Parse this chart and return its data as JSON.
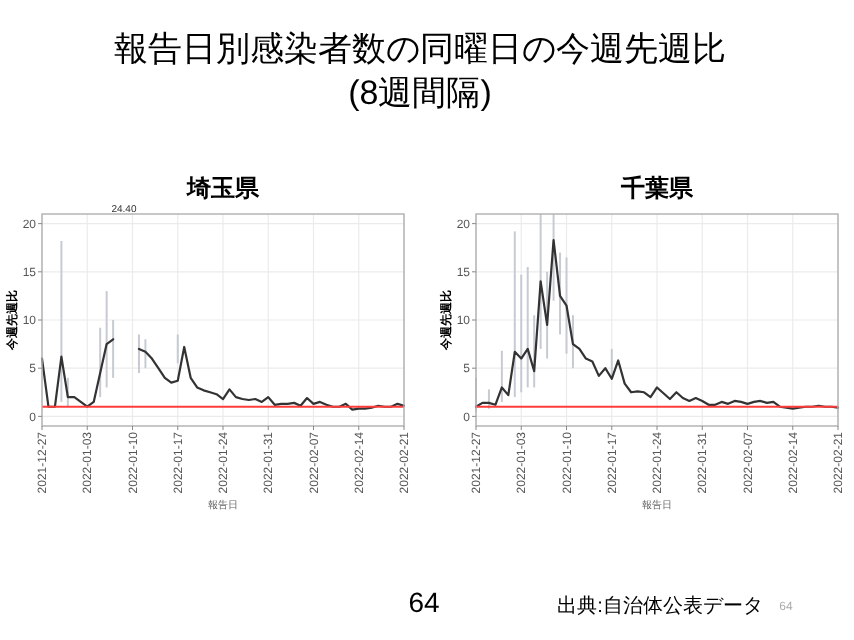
{
  "chart_data": [
    {
      "type": "line",
      "title": "埼玉県",
      "xlabel": "報告日",
      "ylabel": "今週先週比",
      "annotations": [
        "報告日別感染者数の同曜日の今週先週比",
        "(8週間隔)",
        "24.40"
      ],
      "x": [
        "2021-12-27",
        "2021-12-28",
        "2021-12-29",
        "2021-12-30",
        "2021-12-31",
        "2022-01-01",
        "2022-01-02",
        "2022-01-03",
        "2022-01-04",
        "2022-01-05",
        "2022-01-06",
        "2022-01-07",
        "2022-01-08",
        "2022-01-09",
        "2022-01-10",
        "2022-01-11",
        "2022-01-12",
        "2022-01-13",
        "2022-01-14",
        "2022-01-15",
        "2022-01-16",
        "2022-01-17",
        "2022-01-18",
        "2022-01-19",
        "2022-01-20",
        "2022-01-21",
        "2022-01-22",
        "2022-01-23",
        "2022-01-24",
        "2022-01-25",
        "2022-01-26",
        "2022-01-27",
        "2022-01-28",
        "2022-01-29",
        "2022-01-30",
        "2022-01-31",
        "2022-02-01",
        "2022-02-02",
        "2022-02-03",
        "2022-02-04",
        "2022-02-05",
        "2022-02-06",
        "2022-02-07",
        "2022-02-08",
        "2022-02-09",
        "2022-02-10",
        "2022-02-11",
        "2022-02-12",
        "2022-02-13",
        "2022-02-14",
        "2022-02-15",
        "2022-02-16",
        "2022-02-17",
        "2022-02-18",
        "2022-02-19",
        "2022-02-20",
        "2022-02-21"
      ],
      "series": [
        {
          "color": "#333333",
          "values": [
            6,
            1,
            1,
            6.2,
            2,
            2,
            1.5,
            1,
            1.5,
            4.5,
            7.5,
            8,
            null,
            null,
            null,
            7,
            6.7,
            6,
            5,
            4,
            3.5,
            3.7,
            7.2,
            4,
            3,
            2.7,
            2.5,
            2.3,
            1.8,
            2.8,
            2,
            1.8,
            1.7,
            1.8,
            1.5,
            2,
            1.2,
            1.3,
            1.3,
            1.4,
            1.1,
            1.9,
            1.3,
            1.5,
            1.2,
            1,
            1,
            1.3,
            0.7,
            0.8,
            0.8,
            0.9,
            1.1,
            1,
            1,
            1.3,
            1.1
          ],
          "errors": [
            null,
            null,
            null,
            [
              1.5,
              18.2
            ],
            [
              1,
              4
            ],
            null,
            null,
            null,
            null,
            [
              2,
              9.2
            ],
            [
              3,
              13
            ],
            [
              4,
              10
            ],
            null,
            null,
            null,
            [
              4.5,
              8.5
            ],
            [
              5,
              8
            ],
            null,
            null,
            null,
            null,
            [
              5.5,
              8.5
            ],
            null,
            null,
            null,
            null,
            null,
            null,
            null,
            null,
            null,
            null,
            null,
            null,
            null,
            null,
            null,
            null,
            null,
            null,
            null,
            null,
            null,
            null,
            null,
            null,
            null,
            null,
            null,
            null,
            null,
            null,
            null,
            null,
            null,
            null,
            null
          ]
        }
      ],
      "xlim": [
        "2021-12-27",
        "2022-02-21"
      ],
      "ylim": [
        -1,
        21
      ],
      "yticks": [
        0,
        5,
        10,
        15,
        20
      ],
      "xticks": [
        "2021-12-27",
        "2022-01-03",
        "2022-01-10",
        "2022-01-17",
        "2022-01-24",
        "2022-01-31",
        "2022-02-07",
        "2022-02-14",
        "2022-02-21"
      ],
      "grid": true,
      "marker": "none",
      "line_style": "solid",
      "ref_lines": [
        {
          "axis": "y",
          "value": 1,
          "color": "#ff3b3b"
        }
      ]
    },
    {
      "type": "line",
      "title": "千葉県",
      "xlabel": "報告日",
      "ylabel": "今週先週比",
      "annotations": [
        "64",
        "出典:自治体公表データ",
        "64"
      ],
      "x": [
        "2021-12-27",
        "2021-12-28",
        "2021-12-29",
        "2021-12-30",
        "2021-12-31",
        "2022-01-01",
        "2022-01-02",
        "2022-01-03",
        "2022-01-04",
        "2022-01-05",
        "2022-01-06",
        "2022-01-07",
        "2022-01-08",
        "2022-01-09",
        "2022-01-10",
        "2022-01-11",
        "2022-01-12",
        "2022-01-13",
        "2022-01-14",
        "2022-01-15",
        "2022-01-16",
        "2022-01-17",
        "2022-01-18",
        "2022-01-19",
        "2022-01-20",
        "2022-01-21",
        "2022-01-22",
        "2022-01-23",
        "2022-01-24",
        "2022-01-25",
        "2022-01-26",
        "2022-01-27",
        "2022-01-28",
        "2022-01-29",
        "2022-01-30",
        "2022-01-31",
        "2022-02-01",
        "2022-02-02",
        "2022-02-03",
        "2022-02-04",
        "2022-02-05",
        "2022-02-06",
        "2022-02-07",
        "2022-02-08",
        "2022-02-09",
        "2022-02-10",
        "2022-02-11",
        "2022-02-12",
        "2022-02-13",
        "2022-02-14",
        "2022-02-15",
        "2022-02-16",
        "2022-02-17",
        "2022-02-18",
        "2022-02-19",
        "2022-02-20",
        "2022-02-21"
      ],
      "series": [
        {
          "color": "#333333",
          "values": [
            1,
            1.4,
            1.4,
            1.2,
            3,
            2.2,
            6.7,
            6,
            7,
            4.7,
            14,
            9.5,
            18.3,
            12.5,
            11.5,
            7.5,
            7,
            6,
            5.7,
            4.2,
            5,
            3.9,
            5.8,
            3.4,
            2.5,
            2.6,
            2.5,
            2,
            3,
            2.4,
            1.8,
            2.5,
            1.9,
            1.6,
            1.9,
            1.6,
            1.2,
            1.2,
            1.5,
            1.3,
            1.6,
            1.5,
            1.3,
            1.5,
            1.6,
            1.4,
            1.5,
            1,
            0.9,
            0.8,
            0.9,
            1,
            1,
            1.1,
            1,
            1,
            0.9
          ],
          "errors": [
            [
              0.5,
              4
            ],
            null,
            [
              0.8,
              2.8
            ],
            null,
            [
              1.5,
              6.8
            ],
            null,
            [
              2,
              19.2
            ],
            [
              2.5,
              14.7
            ],
            [
              3,
              15.5
            ],
            [
              3,
              10.5
            ],
            [
              7,
              21
            ],
            [
              6,
              15
            ],
            [
              12,
              21
            ],
            [
              8.5,
              17
            ],
            [
              6.5,
              16.5
            ],
            [
              5,
              10.5
            ],
            null,
            null,
            null,
            null,
            null,
            [
              4,
              7
            ],
            null,
            null,
            null,
            null,
            null,
            null,
            null,
            null,
            null,
            null,
            null,
            null,
            null,
            null,
            null,
            null,
            null,
            null,
            null,
            null,
            null,
            null,
            null,
            null,
            null,
            null,
            null,
            null,
            null,
            null,
            null,
            null,
            null,
            null,
            null
          ]
        }
      ],
      "xlim": [
        "2021-12-27",
        "2022-02-21"
      ],
      "ylim": [
        -1,
        21
      ],
      "yticks": [
        0,
        5,
        10,
        15,
        20
      ],
      "xticks": [
        "2021-12-27",
        "2022-01-03",
        "2022-01-10",
        "2022-01-17",
        "2022-01-24",
        "2022-01-31",
        "2022-02-07",
        "2022-02-14",
        "2022-02-21"
      ],
      "grid": true,
      "marker": "none",
      "line_style": "solid",
      "ref_lines": [
        {
          "axis": "y",
          "value": 1,
          "color": "#ff3b3b"
        }
      ]
    }
  ]
}
